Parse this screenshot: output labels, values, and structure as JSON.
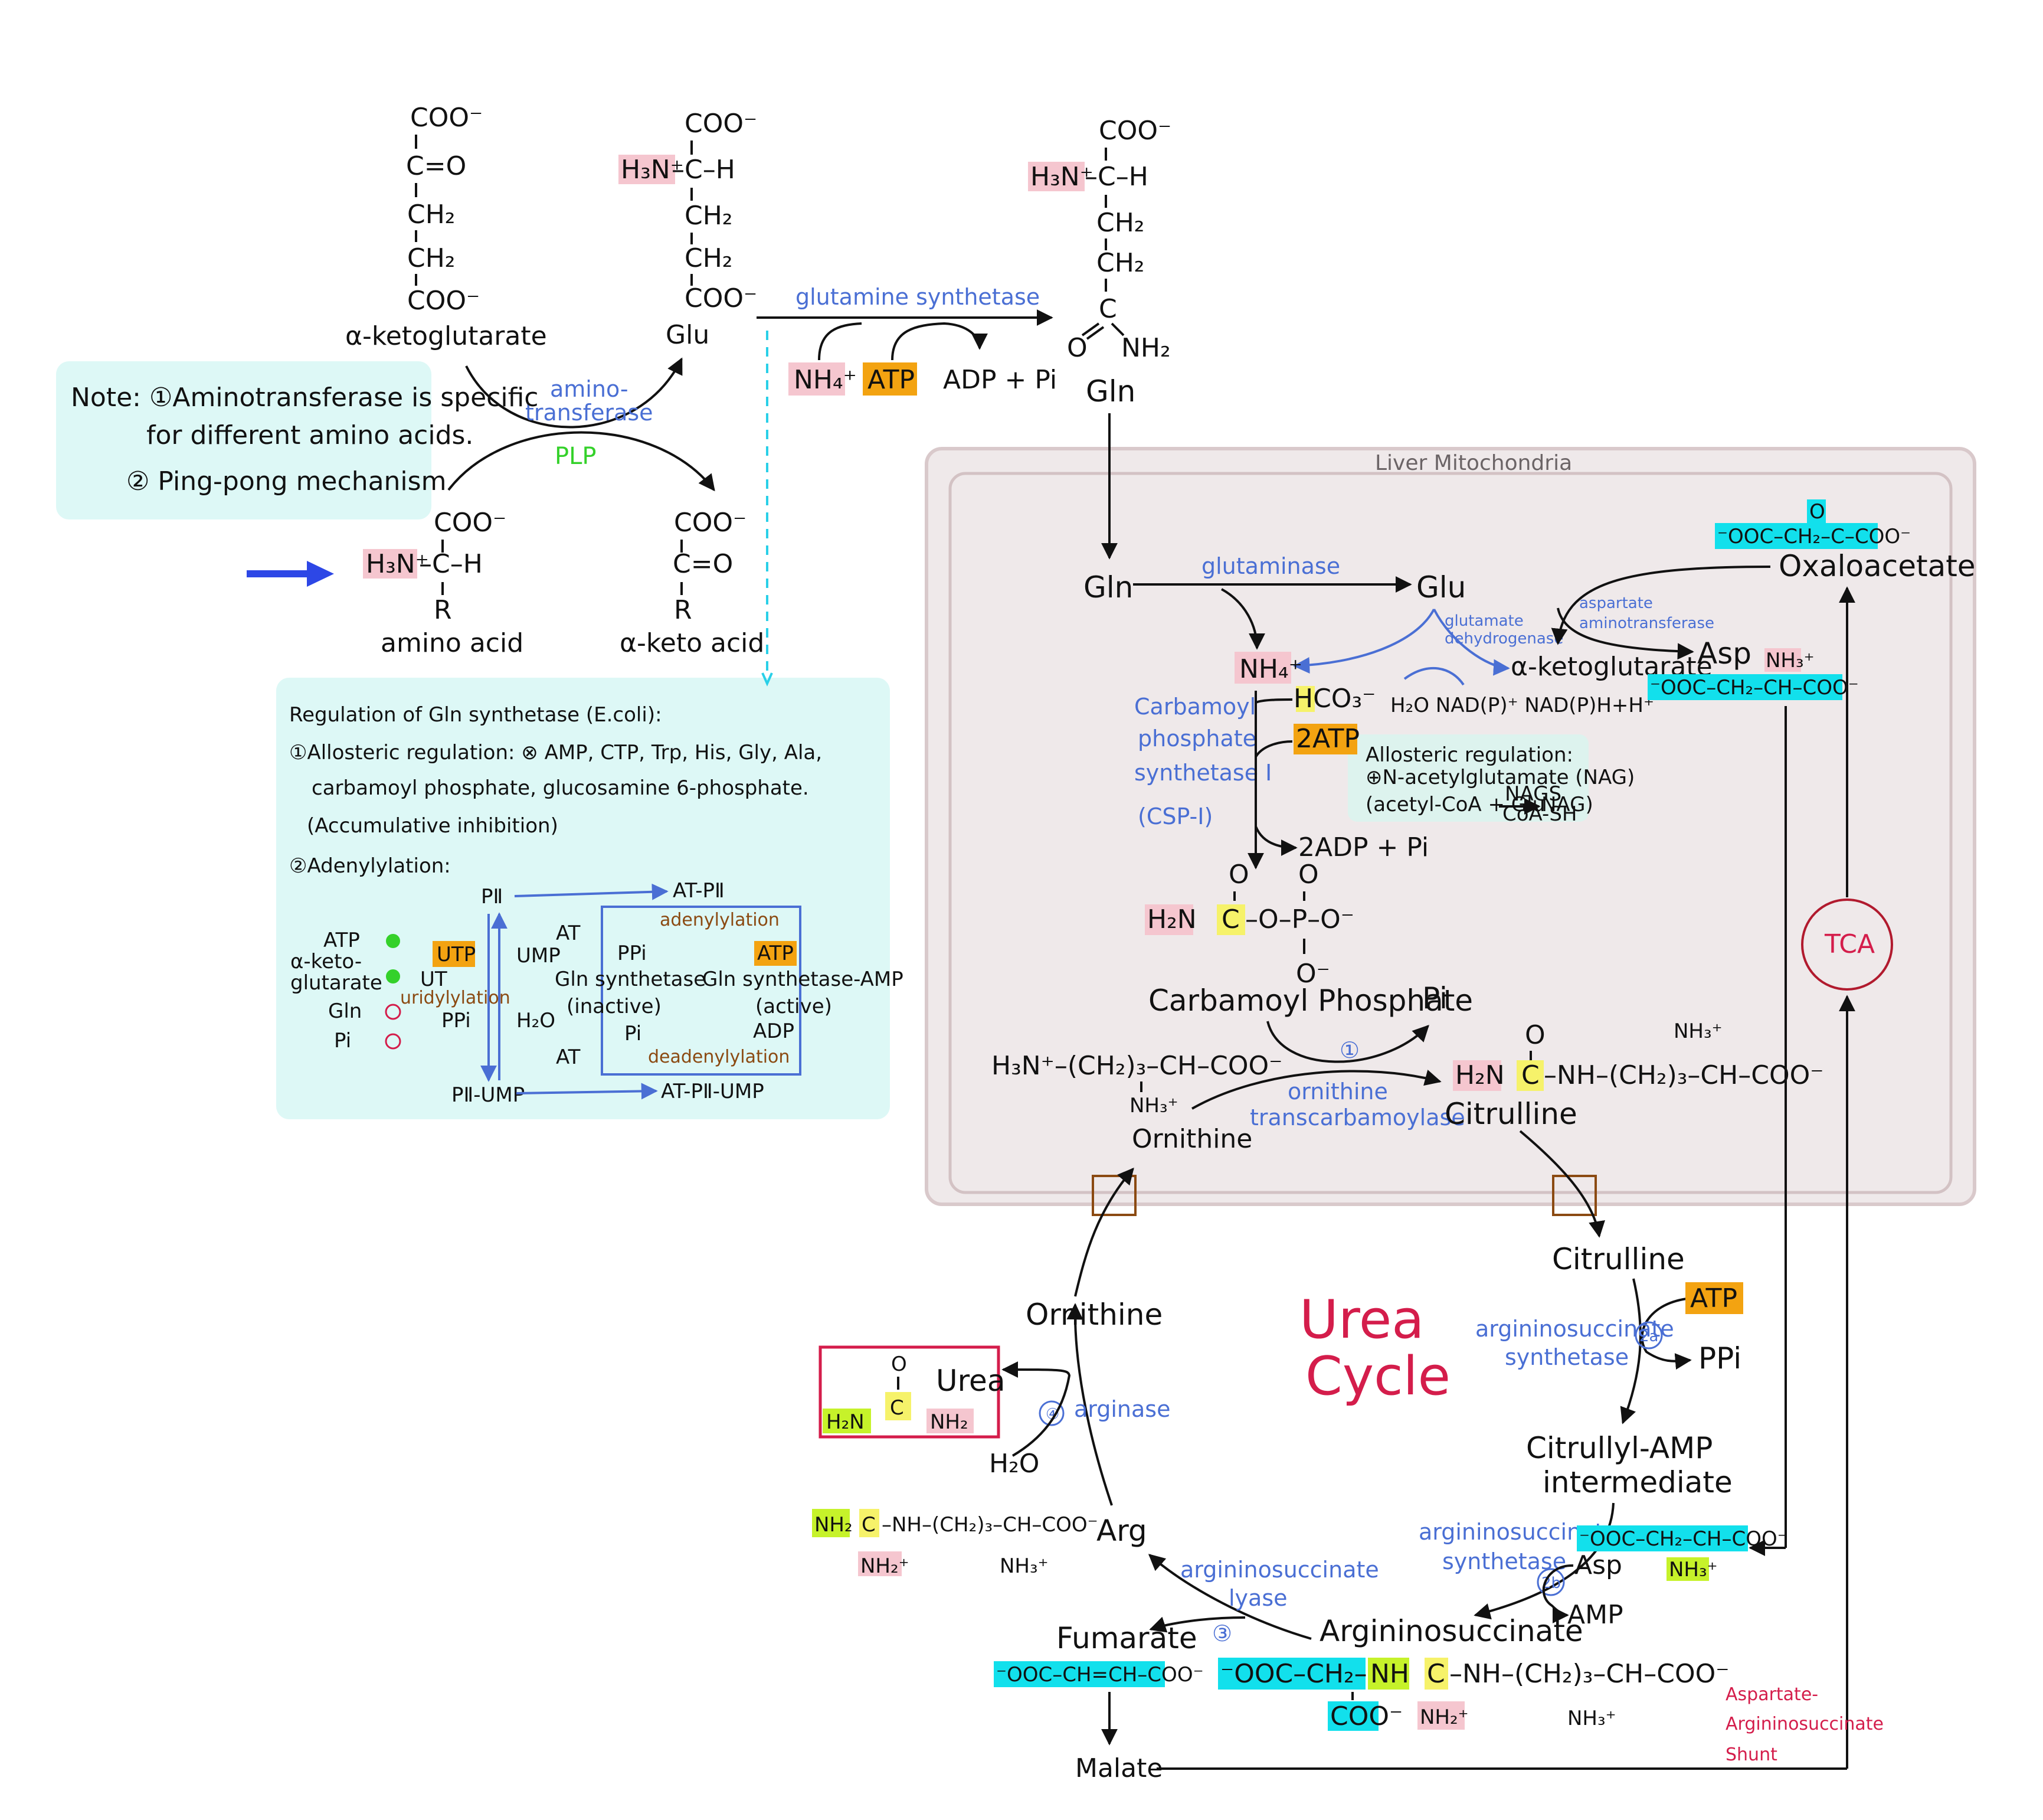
{
  "transamination": {
    "akg": {
      "c1": "COO⁻",
      "c2": "C=O",
      "c3": "CH₂",
      "c4": "CH₂",
      "c5": "COO⁻",
      "name": "α-ketoglutarate"
    },
    "glu": {
      "c1": "COO⁻",
      "nh": "H₃N⁺",
      "ch": "–C–H",
      "c3": "CH₂",
      "c4": "CH₂",
      "c5": "COO⁻",
      "name": "Glu"
    },
    "aa": {
      "c1": "COO⁻",
      "nh": "H₃N⁺",
      "ch": "–C–H",
      "r": "R",
      "name": "amino acid"
    },
    "ka": {
      "c1": "COO⁻",
      "c2": "C=O",
      "r": "R",
      "name": "α-keto acid"
    },
    "enzyme": {
      "line1": "amino-",
      "line2": "transferase",
      "cofactor": "PLP"
    }
  },
  "note": {
    "line1": "Note: ①Aminotransferase is specific",
    "line2": "for different amino acids.",
    "line3": "② Ping-pong mechanism"
  },
  "gs": {
    "enzyme": "glutamine synthetase",
    "nh4": "NH₄⁺",
    "atp": "ATP",
    "products": "ADP + Pi"
  },
  "gln": {
    "c1": "COO⁻",
    "nh": "H₃N⁺",
    "ch": "–C–H",
    "c3": "CH₂",
    "c4": "CH₂",
    "c5": "C",
    "o": "O",
    "nh2": "NH₂",
    "name": "Gln"
  },
  "regulation": {
    "title": "Regulation of Gln synthetase (E.coli):",
    "allo1": "①Allosteric regulation: ⊗ AMP, CTP, Trp, His, Gly, Ala,",
    "allo2": "carbamoyl phosphate, glucosamine 6-phosphate.",
    "allo3": "(Accumulative inhibition)",
    "aden": "②Adenylylation:",
    "pii": "PⅡ",
    "atpii": "AT-PⅡ",
    "piiump": "PⅡ-UMP",
    "atpiiump": "AT-PⅡ-UMP",
    "utp": "UTP",
    "ump": "UMP",
    "ut": "UT",
    "uridylylation": "uridylylation",
    "ppi": "PPi",
    "h2o": "H₂O",
    "at1": "AT",
    "at2": "AT",
    "adenylation": "adenylylation",
    "deadenylation": "deadenylylation",
    "ppi2": "PPi",
    "pi2": "Pi",
    "atp2": "ATP",
    "adp2": "ADP",
    "inactive": "Gln synthetase",
    "inactive2": "(inactive)",
    "active": "Gln synthetase-AMP",
    "active2": "(active)",
    "eff_atp": "ATP",
    "eff_akg1": "α-keto-",
    "eff_akg2": "glutarate",
    "eff_gln": "Gln",
    "eff_pi": "Pi"
  },
  "mito": {
    "title": "Liver Mitochondria",
    "gln": "Gln",
    "glutaminase": "glutaminase",
    "glu": "Glu",
    "gdh1": "glutamate",
    "gdh2": "dehydrogenase",
    "nh4": "NH₄⁺",
    "akg": "α-ketoglutarate",
    "cofactors": "H₂O   NAD(P)⁺   NAD(P)H+H⁺",
    "ast1": "aspartate",
    "ast2": "aminotransferase",
    "oaa": "Oxaloacetate",
    "oaa_formula": "⁻OOC–CH₂–C–COO⁻",
    "oaa_o": "O",
    "asp": "Asp",
    "asp_formula": "⁻OOC–CH₂–CH–COO⁻",
    "asp_nh3": "NH₃⁺",
    "cps1": "Carbamoyl",
    "cps2": "phosphate",
    "cps3": "synthetase Ⅰ",
    "cps4": "(CSP-Ⅰ)",
    "hco3": "HCO₃⁻",
    "atp2": "2ATP",
    "adp2": "2ADP + Pi",
    "reg1": "Allosteric regulation:",
    "reg2": "⊕N-acetylglutamate (NAG)",
    "reg3": "(acetyl-CoA + Glu",
    "reg_nags": "NAGS",
    "reg_coa": "CoA-SH",
    "reg_nag": "NAG)",
    "cp_h2n": "H₂N",
    "cp_c": "C",
    "cp_rest": "–O–P–O⁻",
    "cp_o1": "O",
    "cp_o2": "O",
    "cp_o3": "O⁻",
    "cp_name": "Carbamoyl Phosphate",
    "pi": "Pi",
    "orn_formula": "H₃N⁺–(CH₂)₃–CH–COO⁻",
    "orn_nh3": "NH₃⁺",
    "orn_name": "Ornithine",
    "otc1": "ornithine",
    "otc2": "transcarbamoylase",
    "step1": "①",
    "cit_h2n": "H₂N",
    "cit_c": "C",
    "cit_rest": "–NH–(CH₂)₃–CH–COO⁻",
    "cit_o": "O",
    "cit_nh3": "NH₃⁺",
    "cit_name": "Citrulline",
    "tca": "TCA"
  },
  "urea_cycle": {
    "title1": "Urea",
    "title2": "Cycle",
    "citrulline": "Citrulline",
    "atp": "ATP",
    "ass1": "argininosuccinate",
    "ass2": "synthetase",
    "step2a": "2a",
    "ppi": "PPi",
    "intermediate1": "Citrullyl-AMP",
    "intermediate2": "intermediate",
    "ass3": "argininosuccinate",
    "ass4": "synthetase",
    "step2b": "2b",
    "asp": "Asp",
    "amp": "AMP",
    "asp_formula": "⁻OOC–CH₂–CH–COO⁻",
    "asp_nh3": "NH₃⁺",
    "as_name": "Argininosuccinate",
    "as_part1": "⁻OOC–CH₂–CH",
    "as_nh": "NH",
    "as_c": "C",
    "as_rest": "–NH–(CH₂)₃–CH–COO⁻",
    "as_coo": "COO⁻",
    "as_nh2": "NH₂⁺",
    "as_nh3": "NH₃⁺",
    "asl1": "argininosuccinate",
    "asl2": "lyase",
    "step3": "③",
    "fumarate": "Fumarate",
    "fum_formula": "⁻OOC–CH=CH–COO⁻",
    "malate": "Malate",
    "arg": "Arg",
    "arg_nh2": "NH₂",
    "arg_c": "C",
    "arg_rest": "–NH–(CH₂)₃–CH–COO⁻",
    "arg_nh2b": "NH₂⁺",
    "arg_nh3": "NH₃⁺",
    "arginase": "arginase",
    "step4": "④",
    "h2o": "H₂O",
    "ornithine": "Ornithine",
    "urea": "Urea",
    "urea_o": "O",
    "urea_h2n": "H₂N",
    "urea_c": "C",
    "urea_nh2": "NH₂",
    "shunt1": "Aspartate-",
    "shunt2": "Argininosuccinate",
    "shunt3": "Shunt"
  },
  "colors": {
    "pink": "#f5c6cf",
    "cyan": "#12e0ec",
    "yellow": "#f6f26a",
    "lime": "#c6f22a",
    "orange": "#f3a311",
    "panel": "#ddf8f6",
    "mito": "#efe9ea",
    "blue": "#4a6fd4",
    "red": "#d41d4b",
    "green": "#34d12a",
    "brown": "#8b4a12"
  }
}
